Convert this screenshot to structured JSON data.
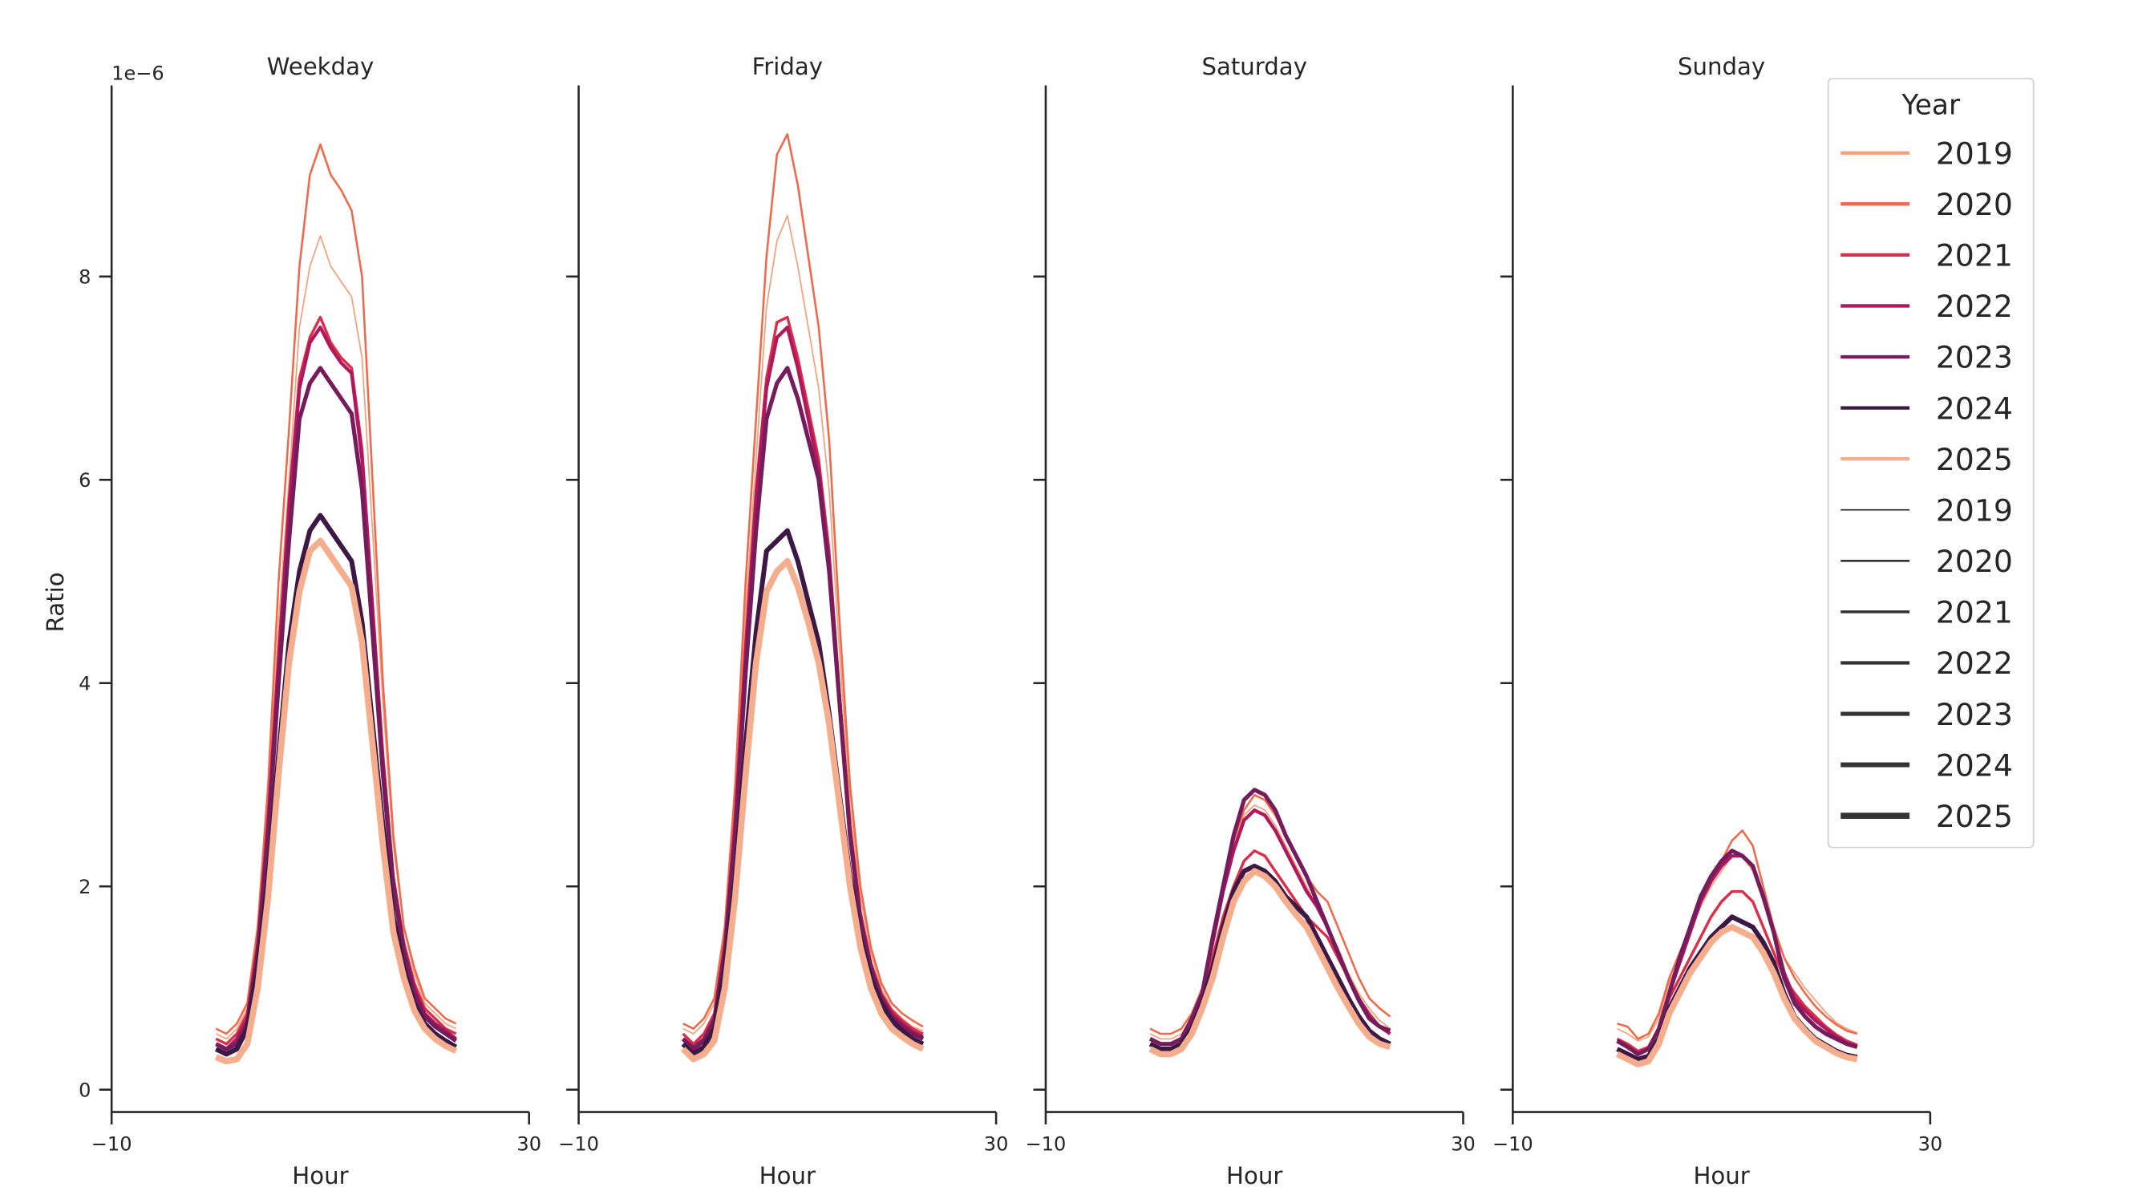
{
  "chart_data": [
    {
      "type": "line",
      "title": "Weekday",
      "x_label": "Hour",
      "y_label": "Ratio",
      "y_offset_label": "1e−6",
      "x": [
        0,
        1,
        2,
        3,
        4,
        5,
        6,
        7,
        8,
        9,
        10,
        11,
        12,
        13,
        14,
        15,
        16,
        17,
        18,
        19,
        20,
        21,
        22,
        23
      ],
      "xlim": [
        -10,
        30
      ],
      "xticks": [
        {
          "value": -10,
          "label": "−10"
        },
        30
      ],
      "ylim": [
        -0.22,
        9.88
      ],
      "yticks": [
        0,
        2,
        4,
        6,
        8
      ],
      "show_ytick_labels": true,
      "series": [
        {
          "name": "2019",
          "color": "#f4a07c",
          "width": 1,
          "values": [
            0.55,
            0.5,
            0.6,
            0.8,
            1.5,
            2.8,
            4.6,
            6.0,
            7.5,
            8.1,
            8.4,
            8.1,
            7.95,
            7.8,
            7.2,
            5.5,
            3.8,
            2.4,
            1.6,
            1.15,
            0.85,
            0.75,
            0.65,
            0.6
          ]
        },
        {
          "name": "2020",
          "color": "#ee6a4a",
          "width": 1.5,
          "values": [
            0.6,
            0.55,
            0.65,
            0.85,
            1.6,
            3.0,
            5.0,
            6.5,
            8.1,
            9.0,
            9.3,
            9.0,
            8.85,
            8.65,
            8.0,
            6.0,
            4.0,
            2.5,
            1.6,
            1.2,
            0.9,
            0.8,
            0.7,
            0.65
          ]
        },
        {
          "name": "2021",
          "color": "#dc2e48",
          "width": 2,
          "values": [
            0.5,
            0.45,
            0.55,
            0.75,
            1.45,
            2.7,
            4.3,
            5.8,
            7.0,
            7.4,
            7.6,
            7.35,
            7.2,
            7.1,
            6.3,
            4.8,
            3.3,
            2.1,
            1.45,
            1.05,
            0.8,
            0.7,
            0.6,
            0.55
          ]
        },
        {
          "name": "2022",
          "color": "#b0185e",
          "width": 2.5,
          "values": [
            0.45,
            0.4,
            0.5,
            0.7,
            1.4,
            2.6,
            4.2,
            5.7,
            6.9,
            7.35,
            7.5,
            7.3,
            7.15,
            7.05,
            6.2,
            4.7,
            3.2,
            2.05,
            1.4,
            1.0,
            0.75,
            0.65,
            0.58,
            0.5
          ]
        },
        {
          "name": "2023",
          "color": "#761c5c",
          "width": 3,
          "values": [
            0.45,
            0.4,
            0.45,
            0.65,
            1.35,
            2.5,
            4.0,
            5.4,
            6.6,
            6.95,
            7.1,
            6.95,
            6.8,
            6.65,
            5.9,
            4.5,
            3.1,
            2.0,
            1.35,
            0.95,
            0.72,
            0.62,
            0.55,
            0.48
          ]
        },
        {
          "name": "2024",
          "color": "#3c1844",
          "width": 3.5,
          "values": [
            0.4,
            0.35,
            0.4,
            0.6,
            1.2,
            2.1,
            3.3,
            4.4,
            5.1,
            5.5,
            5.65,
            5.5,
            5.35,
            5.2,
            4.6,
            3.6,
            2.6,
            1.7,
            1.2,
            0.85,
            0.65,
            0.55,
            0.48,
            0.42
          ]
        },
        {
          "name": "2025",
          "color": "#f5ae8d",
          "width": 4.5,
          "values": [
            0.32,
            0.28,
            0.3,
            0.45,
            1.0,
            1.9,
            3.1,
            4.2,
            4.9,
            5.3,
            5.4,
            5.25,
            5.1,
            4.95,
            4.4,
            3.4,
            2.4,
            1.55,
            1.1,
            0.78,
            0.6,
            0.5,
            0.43,
            0.38
          ]
        }
      ]
    },
    {
      "type": "line",
      "title": "Friday",
      "x_label": "Hour",
      "x": [
        0,
        1,
        2,
        3,
        4,
        5,
        6,
        7,
        8,
        9,
        10,
        11,
        12,
        13,
        14,
        15,
        16,
        17,
        18,
        19,
        20,
        21,
        22,
        23
      ],
      "xlim": [
        -10,
        30
      ],
      "xticks": [
        {
          "value": -10,
          "label": "−10"
        },
        30
      ],
      "ylim": [
        -0.22,
        9.88
      ],
      "yticks": [
        0,
        2,
        4,
        6,
        8
      ],
      "show_ytick_labels": false,
      "series": [
        {
          "name": "2019",
          "color": "#f4a07c",
          "width": 1,
          "values": [
            0.6,
            0.55,
            0.65,
            0.85,
            1.55,
            2.9,
            4.7,
            6.2,
            7.7,
            8.35,
            8.6,
            8.1,
            7.5,
            6.9,
            5.9,
            4.3,
            2.8,
            1.9,
            1.35,
            1.0,
            0.8,
            0.7,
            0.62,
            0.58
          ]
        },
        {
          "name": "2020",
          "color": "#ee6a4a",
          "width": 1.5,
          "values": [
            0.65,
            0.6,
            0.7,
            0.9,
            1.6,
            3.0,
            5.0,
            6.6,
            8.2,
            9.2,
            9.4,
            8.9,
            8.2,
            7.5,
            6.4,
            4.6,
            3.0,
            2.0,
            1.4,
            1.05,
            0.85,
            0.75,
            0.68,
            0.62
          ]
        },
        {
          "name": "2021",
          "color": "#dc2e48",
          "width": 2,
          "values": [
            0.55,
            0.45,
            0.55,
            0.75,
            1.45,
            2.7,
            4.4,
            5.9,
            7.0,
            7.55,
            7.6,
            7.2,
            6.7,
            6.2,
            5.3,
            3.9,
            2.6,
            1.75,
            1.25,
            0.95,
            0.78,
            0.68,
            0.6,
            0.55
          ]
        },
        {
          "name": "2022",
          "color": "#b0185e",
          "width": 2.5,
          "values": [
            0.5,
            0.42,
            0.5,
            0.7,
            1.4,
            2.6,
            4.3,
            5.8,
            6.9,
            7.4,
            7.5,
            7.1,
            6.6,
            6.1,
            5.2,
            3.85,
            2.55,
            1.7,
            1.22,
            0.92,
            0.75,
            0.65,
            0.57,
            0.52
          ]
        },
        {
          "name": "2023",
          "color": "#761c5c",
          "width": 3,
          "values": [
            0.5,
            0.4,
            0.48,
            0.68,
            1.35,
            2.5,
            4.1,
            5.5,
            6.6,
            6.95,
            7.1,
            6.8,
            6.4,
            6.0,
            5.1,
            3.8,
            2.5,
            1.65,
            1.2,
            0.9,
            0.72,
            0.62,
            0.55,
            0.5
          ]
        },
        {
          "name": "2024",
          "color": "#3c1844",
          "width": 3.5,
          "values": [
            0.45,
            0.35,
            0.42,
            0.6,
            1.2,
            2.1,
            3.4,
            4.5,
            5.3,
            5.4,
            5.5,
            5.2,
            4.8,
            4.4,
            3.7,
            2.9,
            2.1,
            1.5,
            1.1,
            0.85,
            0.68,
            0.58,
            0.5,
            0.45
          ]
        },
        {
          "name": "2025",
          "color": "#f5ae8d",
          "width": 4.5,
          "values": [
            0.4,
            0.3,
            0.35,
            0.48,
            1.0,
            1.9,
            3.1,
            4.2,
            4.9,
            5.1,
            5.2,
            4.95,
            4.6,
            4.2,
            3.6,
            2.8,
            2.0,
            1.4,
            1.0,
            0.75,
            0.6,
            0.52,
            0.45,
            0.4
          ]
        }
      ]
    },
    {
      "type": "line",
      "title": "Saturday",
      "x_label": "Hour",
      "x": [
        0,
        1,
        2,
        3,
        4,
        5,
        6,
        7,
        8,
        9,
        10,
        11,
        12,
        13,
        14,
        15,
        16,
        17,
        18,
        19,
        20,
        21,
        22,
        23
      ],
      "xlim": [
        -10,
        30
      ],
      "xticks": [
        {
          "value": -10,
          "label": "−10"
        },
        30
      ],
      "ylim": [
        -0.22,
        9.88
      ],
      "yticks": [
        0,
        2,
        4,
        6,
        8
      ],
      "show_ytick_labels": false,
      "series": [
        {
          "name": "2019",
          "color": "#f4a07c",
          "width": 1,
          "values": [
            0.55,
            0.5,
            0.5,
            0.55,
            0.7,
            0.95,
            1.45,
            1.95,
            2.4,
            2.7,
            2.8,
            2.75,
            2.6,
            2.4,
            2.2,
            2.0,
            1.8,
            1.6,
            1.4,
            1.15,
            0.95,
            0.8,
            0.68,
            0.6
          ]
        },
        {
          "name": "2020",
          "color": "#ee6a4a",
          "width": 1.5,
          "values": [
            0.6,
            0.55,
            0.55,
            0.6,
            0.75,
            1.0,
            1.5,
            2.0,
            2.45,
            2.75,
            2.9,
            2.85,
            2.7,
            2.5,
            2.3,
            2.1,
            1.95,
            1.85,
            1.6,
            1.35,
            1.1,
            0.9,
            0.8,
            0.72
          ]
        },
        {
          "name": "2021",
          "color": "#dc2e48",
          "width": 2,
          "values": [
            0.5,
            0.45,
            0.45,
            0.5,
            0.65,
            0.9,
            1.3,
            1.7,
            2.0,
            2.25,
            2.35,
            2.3,
            2.15,
            2.0,
            1.85,
            1.7,
            1.6,
            1.5,
            1.3,
            1.1,
            0.9,
            0.75,
            0.62,
            0.55
          ]
        },
        {
          "name": "2022",
          "color": "#b0185e",
          "width": 2.5,
          "values": [
            0.5,
            0.45,
            0.45,
            0.5,
            0.7,
            0.95,
            1.45,
            1.95,
            2.35,
            2.65,
            2.75,
            2.7,
            2.55,
            2.35,
            2.15,
            1.95,
            1.8,
            1.6,
            1.35,
            1.1,
            0.9,
            0.72,
            0.62,
            0.55
          ]
        },
        {
          "name": "2023",
          "color": "#761c5c",
          "width": 3,
          "values": [
            0.5,
            0.45,
            0.45,
            0.5,
            0.7,
            0.95,
            1.5,
            2.0,
            2.5,
            2.85,
            2.95,
            2.9,
            2.75,
            2.5,
            2.3,
            2.1,
            1.85,
            1.6,
            1.35,
            1.1,
            0.88,
            0.7,
            0.62,
            0.58
          ]
        },
        {
          "name": "2024",
          "color": "#3c1844",
          "width": 3.5,
          "values": [
            0.45,
            0.4,
            0.4,
            0.45,
            0.6,
            0.85,
            1.2,
            1.6,
            1.95,
            2.15,
            2.2,
            2.15,
            2.05,
            1.9,
            1.8,
            1.7,
            1.5,
            1.3,
            1.1,
            0.9,
            0.72,
            0.58,
            0.5,
            0.45
          ]
        },
        {
          "name": "2025",
          "color": "#f5ae8d",
          "width": 4.5,
          "values": [
            0.4,
            0.35,
            0.35,
            0.4,
            0.55,
            0.8,
            1.1,
            1.5,
            1.85,
            2.05,
            2.15,
            2.1,
            2.0,
            1.85,
            1.72,
            1.6,
            1.4,
            1.2,
            1.0,
            0.82,
            0.65,
            0.52,
            0.45,
            0.42
          ]
        }
      ]
    },
    {
      "type": "line",
      "title": "Sunday",
      "x_label": "Hour",
      "x": [
        0,
        1,
        2,
        3,
        4,
        5,
        6,
        7,
        8,
        9,
        10,
        11,
        12,
        13,
        14,
        15,
        16,
        17,
        18,
        19,
        20,
        21,
        22,
        23
      ],
      "xlim": [
        -10,
        30
      ],
      "xticks": [
        {
          "value": -10,
          "label": "−10"
        },
        30
      ],
      "ylim": [
        -0.22,
        9.88
      ],
      "yticks": [
        0,
        2,
        4,
        6,
        8
      ],
      "show_ytick_labels": false,
      "legend_title": "Year",
      "legend_loc": "upper right",
      "size_legend": [
        "2019",
        "2020",
        "2021",
        "2022",
        "2023",
        "2024",
        "2025"
      ],
      "series": [
        {
          "name": "2019",
          "color": "#f4a07c",
          "width": 1,
          "values": [
            0.6,
            0.55,
            0.48,
            0.52,
            0.7,
            1.05,
            1.3,
            1.55,
            1.8,
            2.0,
            2.15,
            2.3,
            2.3,
            2.15,
            1.85,
            1.55,
            1.3,
            1.15,
            1.0,
            0.88,
            0.76,
            0.66,
            0.6,
            0.56
          ]
        },
        {
          "name": "2020",
          "color": "#ee6a4a",
          "width": 1.5,
          "values": [
            0.65,
            0.62,
            0.5,
            0.55,
            0.75,
            1.1,
            1.35,
            1.6,
            1.85,
            2.05,
            2.25,
            2.45,
            2.55,
            2.4,
            2.0,
            1.6,
            1.3,
            1.1,
            0.95,
            0.82,
            0.72,
            0.64,
            0.58,
            0.55
          ]
        },
        {
          "name": "2021",
          "color": "#dc2e48",
          "width": 2,
          "values": [
            0.5,
            0.45,
            0.38,
            0.42,
            0.6,
            0.9,
            1.1,
            1.3,
            1.5,
            1.7,
            1.85,
            1.95,
            1.95,
            1.85,
            1.6,
            1.35,
            1.1,
            0.95,
            0.82,
            0.72,
            0.62,
            0.54,
            0.48,
            0.44
          ]
        },
        {
          "name": "2022",
          "color": "#b0185e",
          "width": 2.5,
          "values": [
            0.48,
            0.42,
            0.35,
            0.4,
            0.6,
            0.95,
            1.25,
            1.55,
            1.85,
            2.05,
            2.2,
            2.3,
            2.3,
            2.2,
            1.9,
            1.55,
            1.15,
            0.9,
            0.78,
            0.68,
            0.6,
            0.52,
            0.46,
            0.42
          ]
        },
        {
          "name": "2023",
          "color": "#761c5c",
          "width": 3,
          "values": [
            0.48,
            0.42,
            0.35,
            0.4,
            0.6,
            0.95,
            1.3,
            1.6,
            1.9,
            2.1,
            2.25,
            2.35,
            2.3,
            2.2,
            1.9,
            1.55,
            1.1,
            0.85,
            0.72,
            0.62,
            0.55,
            0.5,
            0.45,
            0.42
          ]
        },
        {
          "name": "2024",
          "color": "#3c1844",
          "width": 3.5,
          "values": [
            0.4,
            0.35,
            0.3,
            0.33,
            0.5,
            0.8,
            1.0,
            1.2,
            1.35,
            1.5,
            1.6,
            1.7,
            1.65,
            1.6,
            1.45,
            1.25,
            0.95,
            0.72,
            0.6,
            0.5,
            0.44,
            0.38,
            0.34,
            0.32
          ]
        },
        {
          "name": "2025",
          "color": "#f5ae8d",
          "width": 4.5,
          "values": [
            0.35,
            0.3,
            0.25,
            0.28,
            0.45,
            0.75,
            0.95,
            1.15,
            1.3,
            1.45,
            1.55,
            1.6,
            1.55,
            1.5,
            1.35,
            1.15,
            0.9,
            0.7,
            0.58,
            0.48,
            0.42,
            0.36,
            0.32,
            0.3
          ]
        }
      ]
    }
  ]
}
